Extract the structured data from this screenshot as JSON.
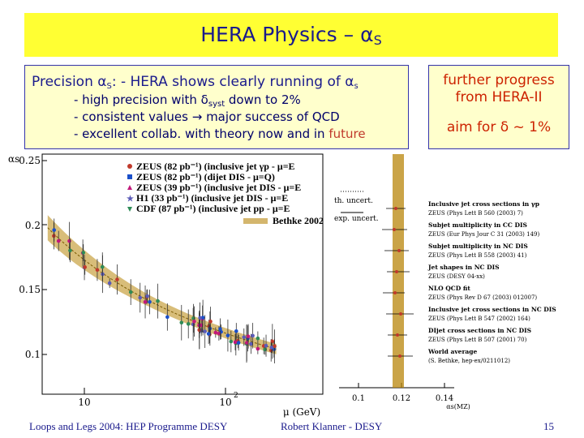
{
  "title": {
    "text": "HERA Physics – α",
    "sub": "S"
  },
  "intro": {
    "line1_prefix": "Precision α",
    "line1_sub": "S",
    "line1_rest": ":  - HERA shows clearly running of α",
    "line1_sub2": "s",
    "line2_prefix": "- high precision with δ",
    "line2_sub": "syst",
    "line2_rest": " down to 2%",
    "line3": "- consistent values → major success of QCD",
    "line4_prefix": "- excellent collab. with theory now and in ",
    "line4_future": "future"
  },
  "right": {
    "line1": "further progress",
    "line2": "from HERA-II",
    "aim": "aim for δ ~ 1%"
  },
  "plot": {
    "ylabel": "αs",
    "yticks": [
      "0.25",
      "0.2",
      "0.15",
      "0.1"
    ],
    "xticks": [
      "10",
      "10"
    ],
    "xtick_exp": "2",
    "xlabel": "μ (GeV)",
    "legend": [
      {
        "label": "ZEUS  (82 pb⁻¹) (inclusive jet γp - μ=E",
        "color": "#c0392b",
        "marker": "circle"
      },
      {
        "label": "ZEUS  (82 pb⁻¹) (dijet DIS - μ=Q)",
        "color": "#1a4fc9",
        "marker": "square"
      },
      {
        "label": "ZEUS  (39 pb⁻¹) (inclusive jet DIS - μ=E",
        "color": "#c2187a",
        "marker": "triangle"
      },
      {
        "label": "H1     (33 pb⁻¹) (inclusive jet DIS - μ=E",
        "color": "#5b5bb8",
        "marker": "star"
      },
      {
        "label": "CDF   (87 pb⁻¹) (inclusive jet pp - μ=E",
        "color": "#2e8b57",
        "marker": "triangle-down"
      }
    ],
    "bethke_label": "Bethke 2002",
    "right_xticks": [
      "0.1",
      "0.12",
      "0.14"
    ],
    "right_xlabel": "αs(MZ)",
    "th_uncert": "th. uncert.",
    "exp_uncert": "exp. uncert.",
    "measurements": [
      {
        "title": "Inclusive jet cross sections in γp",
        "ref": "ZEUS (Phys Lett B 560 (2003) 7)"
      },
      {
        "title": "Subjet multiplicity in CC DIS",
        "ref": "ZEUS (Eur Phys Jour C 31 (2003) 149)"
      },
      {
        "title": "Subjet multiplicity in NC DIS",
        "ref": "ZEUS (Phys Lett B 558 (2003) 41)"
      },
      {
        "title": "Jet shapes in NC DIS",
        "ref": "ZEUS (DESY 04-xx)"
      },
      {
        "title": "NLO QCD fit",
        "ref": "ZEUS (Phys Rev D 67 (2003) 012007)"
      },
      {
        "title": "Inclusive jet cross sections in NC DIS",
        "ref": "ZEUS (Phys Lett B 547 (2002) 164)"
      },
      {
        "title": "DIjet cross sections in NC DIS",
        "ref": "ZEUS (Phys Lett B 507 (2001) 70)"
      },
      {
        "title": "World average",
        "ref": "(S. Bethke, hep-ex/0211012)"
      }
    ]
  },
  "footer": {
    "conference": "Loops and Legs 2004: HEP Programme DESY",
    "author": "Robert Klanner - DESY",
    "page": "15"
  }
}
